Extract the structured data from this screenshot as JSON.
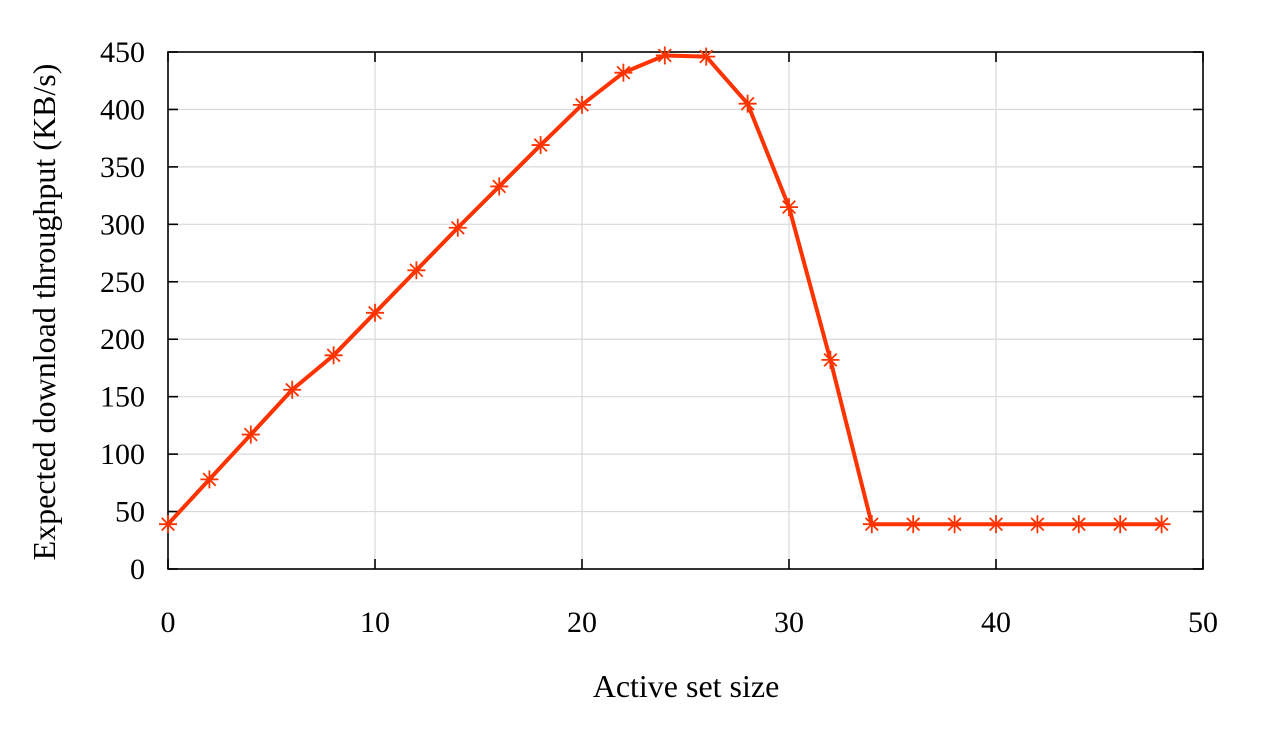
{
  "chart_data": {
    "type": "line",
    "title": "",
    "xlabel": "Active set size",
    "ylabel": "Expected download throughput (KB/s)",
    "xlim": [
      0,
      50
    ],
    "ylim": [
      0,
      450
    ],
    "xticks": [
      0,
      10,
      20,
      30,
      40,
      50
    ],
    "yticks": [
      0,
      50,
      100,
      150,
      200,
      250,
      300,
      350,
      400,
      450
    ],
    "grid": true,
    "legend": "none",
    "series": [
      {
        "color": "#ff3300",
        "marker": "asterisk",
        "x": [
          0,
          2,
          4,
          6,
          8,
          10,
          12,
          14,
          16,
          18,
          20,
          22,
          24,
          26,
          28,
          30,
          32,
          34,
          36,
          38,
          40,
          42,
          44,
          46,
          48
        ],
        "y": [
          39,
          78,
          117,
          156,
          186,
          223,
          260,
          297,
          333,
          369,
          404,
          432,
          447,
          446,
          405,
          315,
          182,
          39,
          39,
          39,
          39,
          39,
          39,
          39,
          39
        ]
      }
    ]
  }
}
